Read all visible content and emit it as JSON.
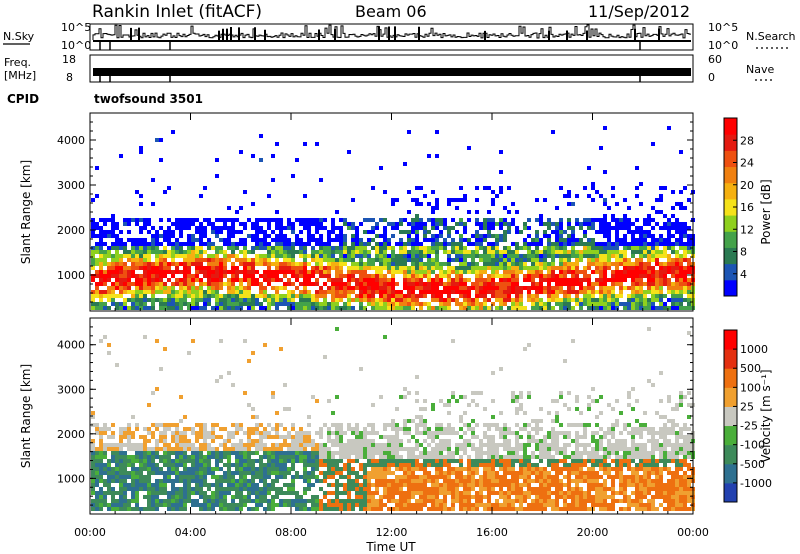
{
  "header": {
    "station": "Rankin Inlet (fitACF)",
    "beam": "Beam 06",
    "date": "11/Sep/2012"
  },
  "noise_panel": {
    "left_label": "N.Sky",
    "right_label": "N.Search",
    "left_ticks": [
      "10^5",
      "10^0"
    ],
    "right_ticks": [
      "10^5",
      "10^0"
    ]
  },
  "freq_panel": {
    "left_label_line1": "Freq.",
    "left_label_line2": "[MHz]",
    "right_label": "Nave",
    "left_ticks": [
      "18",
      "8"
    ],
    "right_ticks": [
      "60",
      "0"
    ]
  },
  "cpid_panel": {
    "label": "CPID",
    "program": "twofsound 3501"
  },
  "chart_data": [
    {
      "type": "heatmap",
      "title": "",
      "xlabel": "",
      "ylabel": "Slant Range [km]",
      "ylim": [
        200,
        4600
      ],
      "yticks": [
        "1000",
        "2000",
        "3000",
        "4000"
      ],
      "xlim_hours": [
        0,
        24
      ],
      "colorbar": {
        "label": "Power [dB]",
        "tick_labels": [
          "28",
          "24",
          "20",
          "16",
          "12",
          "8",
          "4"
        ],
        "colors": [
          "#0000ff",
          "#1c55b4",
          "#2b7a52",
          "#44a24a",
          "#8fd01e",
          "#f5e21a",
          "#f5b010",
          "#f08010",
          "#ee5010",
          "#e41a10",
          "#ff0000"
        ]
      }
    },
    {
      "type": "heatmap",
      "title": "",
      "xlabel": "Time UT",
      "ylabel": "Slant Range [km]",
      "ylim": [
        200,
        4600
      ],
      "yticks": [
        "1000",
        "2000",
        "3000",
        "4000"
      ],
      "xticks": [
        "00:00",
        "04:00",
        "08:00",
        "12:00",
        "16:00",
        "20:00",
        "00:00"
      ],
      "xlim_hours": [
        0,
        24
      ],
      "colorbar": {
        "label": "Velocity [m s⁻¹]",
        "tick_labels": [
          "1000",
          "500",
          "100",
          "25",
          "-25",
          "-100",
          "-500",
          "-1000"
        ],
        "colors": [
          "#2241b0",
          "#2e7090",
          "#3d8a5a",
          "#4aae3a",
          "#c8c8c0",
          "#f0a030",
          "#ee7010",
          "#e43010",
          "#ff0000"
        ]
      }
    }
  ]
}
